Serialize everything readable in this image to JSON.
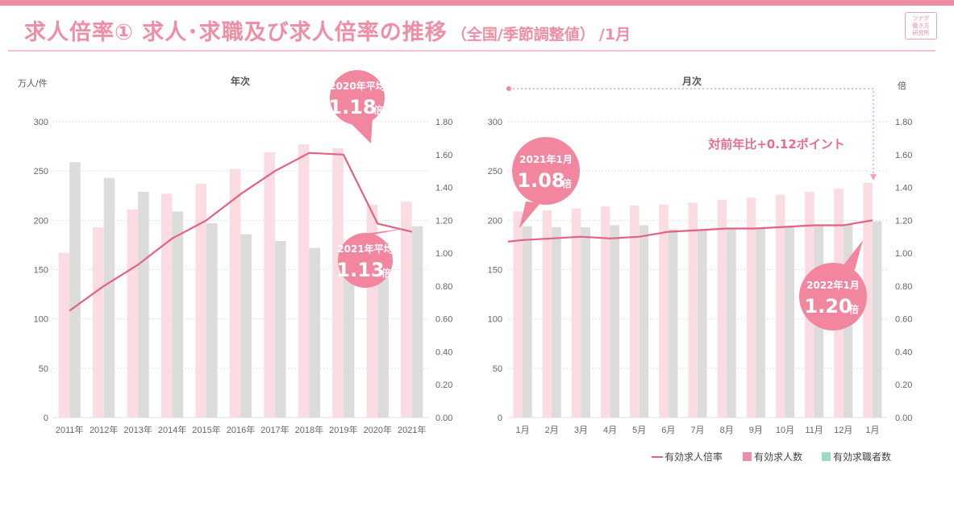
{
  "header": {
    "title_main": "求人倍率① 求人･求職及び求人倍率の推移",
    "title_sub": "（全国/季節調整値）",
    "title_tail": "/1月",
    "logo_lines": [
      "ツナグ",
      "働き方",
      "研究所"
    ]
  },
  "colors": {
    "accent": "#f08ca5",
    "demand_bar": "#fcdce3",
    "seeker_bar": "#dcdcdc",
    "ratio_line": "#e4627f",
    "bubble": "#f2869f",
    "legend_seeker": "#9ed9c8"
  },
  "legend": {
    "line_label": "有効求人倍率",
    "bar1_label": "有効求人数",
    "bar2_label": "有効求職者数"
  },
  "annotation": "対前年比+0.12ポイント",
  "chart_data": [
    {
      "type": "bar",
      "header": "年次",
      "y_left_label": "万人/件",
      "y_right_label": "",
      "categories": [
        "2011年",
        "2012年",
        "2013年",
        "2014年",
        "2015年",
        "2016年",
        "2017年",
        "2018年",
        "2019年",
        "2020年",
        "2021年"
      ],
      "y_left_ticks": [
        "300",
        "250",
        "200",
        "150",
        "100",
        "50",
        "0"
      ],
      "y_right_ticks": [
        "1.80",
        "1.60",
        "1.40",
        "1.20",
        "1.00",
        "0.80",
        "0.60",
        "0.40",
        "0.20",
        "0.00"
      ],
      "ylim_left": [
        0,
        300
      ],
      "ylim_right": [
        0,
        1.8
      ],
      "series": [
        {
          "name": "有効求人数",
          "type": "bar",
          "values": [
            167,
            193,
            211,
            227,
            237,
            252,
            269,
            277,
            273,
            216,
            219
          ]
        },
        {
          "name": "有効求職者数",
          "type": "bar",
          "values": [
            259,
            243,
            229,
            209,
            197,
            186,
            179,
            172,
            168,
            178,
            194
          ]
        },
        {
          "name": "有効求人倍率",
          "type": "line",
          "axis": "right",
          "values": [
            0.65,
            0.8,
            0.93,
            1.09,
            1.2,
            1.36,
            1.5,
            1.61,
            1.6,
            1.18,
            1.13
          ]
        }
      ],
      "callouts": [
        {
          "title": "2020年平均",
          "value": "1.18",
          "unit": "倍"
        },
        {
          "title": "2021年平均",
          "value": "1.13",
          "unit": "倍"
        }
      ]
    },
    {
      "type": "bar",
      "header": "月次",
      "y_left_label": "",
      "y_right_label": "倍",
      "categories": [
        "1月",
        "2月",
        "3月",
        "4月",
        "5月",
        "6月",
        "7月",
        "8月",
        "9月",
        "10月",
        "11月",
        "12月",
        "1月"
      ],
      "y_left_ticks": [
        "300",
        "250",
        "200",
        "150",
        "100",
        "50",
        "0"
      ],
      "y_right_ticks": [
        "1.80",
        "1.60",
        "1.40",
        "1.20",
        "1.00",
        "0.80",
        "0.60",
        "0.40",
        "0.20",
        "0.00"
      ],
      "ylim_left": [
        0,
        300
      ],
      "ylim_right": [
        0,
        1.8
      ],
      "series": [
        {
          "name": "有効求人数",
          "type": "bar",
          "values": [
            209,
            210,
            212,
            214,
            215,
            216,
            218,
            221,
            223,
            226,
            229,
            232,
            238
          ]
        },
        {
          "name": "有効求職者数",
          "type": "bar",
          "values": [
            194,
            193,
            193,
            195,
            195,
            191,
            191,
            192,
            193,
            193,
            194,
            196,
            199
          ]
        },
        {
          "name": "有効求人倍率",
          "type": "line",
          "axis": "right",
          "values": [
            1.08,
            1.09,
            1.1,
            1.09,
            1.1,
            1.13,
            1.14,
            1.15,
            1.15,
            1.16,
            1.17,
            1.17,
            1.2
          ]
        }
      ],
      "callouts": [
        {
          "title": "2021年1月",
          "value": "1.08",
          "unit": "倍"
        },
        {
          "title": "2022年1月",
          "value": "1.20",
          "unit": "倍"
        }
      ]
    }
  ]
}
